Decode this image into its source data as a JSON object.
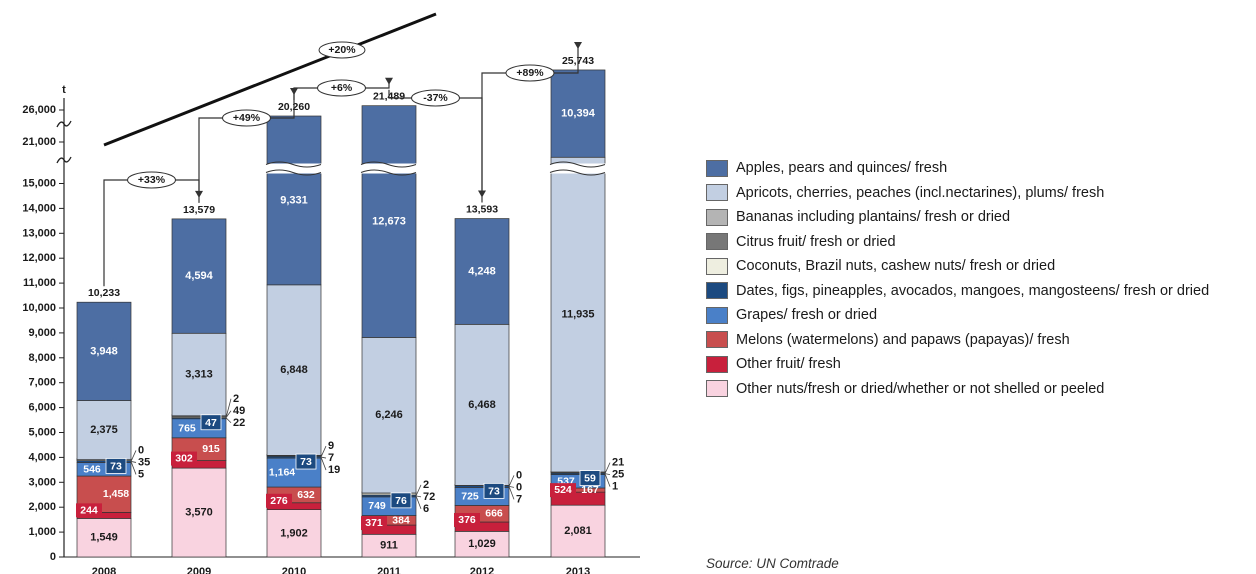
{
  "chart_data": {
    "type": "bar",
    "stacked": true,
    "y_unit": "t",
    "categories": [
      "2008",
      "2009",
      "2010",
      "2011",
      "2012",
      "2013"
    ],
    "y_ticks": [
      0,
      1000,
      2000,
      3000,
      4000,
      5000,
      6000,
      7000,
      8000,
      9000,
      10000,
      11000,
      12000,
      13000,
      14000,
      15000,
      21000,
      26000
    ],
    "y_tick_labels": [
      "0",
      "1,000",
      "2,000",
      "3,000",
      "4,000",
      "5,000",
      "6,000",
      "7,000",
      "8,000",
      "9,000",
      "10,000",
      "11,000",
      "12,000",
      "13,000",
      "14,000",
      "15,000",
      "21,000",
      "26,000"
    ],
    "axis_break": true,
    "series": [
      {
        "key": "other_nuts",
        "name": "Other nuts/fresh or dried/whether or not shelled or peeled",
        "color": "#f9d3e0",
        "values": [
          1549,
          3570,
          1902,
          911,
          1029,
          2081
        ],
        "labels": [
          "1,549",
          "3,570",
          "1,902",
          "911",
          "1,029",
          "2,081"
        ]
      },
      {
        "key": "other_fruit",
        "name": "Other fruit/ fresh",
        "color": "#c8203c",
        "values": [
          244,
          302,
          276,
          371,
          376,
          524
        ],
        "labels": [
          "244",
          "302",
          "276",
          "371",
          "376",
          "524"
        ]
      },
      {
        "key": "melons",
        "name": "Melons (watermelons) and papaws (papayas)/ fresh",
        "color": "#c84e4e",
        "values": [
          1458,
          915,
          632,
          384,
          666,
          167
        ],
        "labels": [
          "1,458",
          "915",
          "632",
          "384",
          "666",
          "167"
        ]
      },
      {
        "key": "grapes",
        "name": "Grapes/ fresh or dried",
        "color": "#4a80c8",
        "values": [
          546,
          765,
          1164,
          749,
          725,
          537
        ],
        "labels": [
          "546",
          "765",
          "1,164",
          "749",
          "725",
          "537"
        ]
      },
      {
        "key": "dates",
        "name": "Dates, figs, pineapples, avocados, mangoes, mangosteens/ fresh or dried",
        "color": "#1c4a80",
        "values": [
          73,
          47,
          73,
          76,
          73,
          59
        ],
        "labels": [
          "73",
          "47",
          "73",
          "76",
          "73",
          "59"
        ]
      },
      {
        "key": "coconuts",
        "name": "Coconuts, Brazil nuts, cashew nuts/ fresh or dried",
        "color": "#eeeee0",
        "values": [
          35,
          49,
          7,
          72,
          0,
          25
        ],
        "labels": [
          "35",
          "49",
          "7",
          "72",
          "0",
          "25"
        ]
      },
      {
        "key": "citrus",
        "name": "Citrus fruit/ fresh or dried",
        "color": "#777777",
        "values": [
          5,
          22,
          19,
          6,
          7,
          1
        ],
        "labels": [
          "5",
          "22",
          "19",
          "6",
          "7",
          "1"
        ]
      },
      {
        "key": "bananas",
        "name": "Bananas including plantains/ fresh or dried",
        "color": "#b4b4b4",
        "values": [
          0,
          2,
          9,
          2,
          0,
          21
        ],
        "labels": [
          "0",
          "2",
          "9",
          "2",
          "0",
          "21"
        ]
      },
      {
        "key": "apricots",
        "name": "Apricots, cherries, peaches (incl.nectarines), plums/ fresh",
        "color": "#c2cfe2",
        "values": [
          2375,
          3313,
          6848,
          6246,
          6468,
          11935
        ],
        "labels": [
          "2,375",
          "3,313",
          "6,848",
          "6,246",
          "6,468",
          "11,935"
        ]
      },
      {
        "key": "apples",
        "name": "Apples, pears and quinces/ fresh",
        "color": "#4d6ea3",
        "values": [
          3948,
          4594,
          9331,
          12673,
          4248,
          10394
        ],
        "labels": [
          "3,948",
          "4,594",
          "9,331",
          "12,673",
          "4,248",
          "10,394"
        ]
      }
    ],
    "totals": [
      10233,
      13579,
      20260,
      21489,
      13593,
      25743
    ],
    "total_labels": [
      "10,233",
      "13,579",
      "20,260",
      "21,489",
      "13,593",
      "25,743"
    ],
    "changes": [
      "+33%",
      "+49%",
      "+6%",
      "-37%",
      "+89%"
    ],
    "overall_change": "+20%",
    "legend_order": [
      "apples",
      "apricots",
      "bananas",
      "citrus",
      "coconuts",
      "dates",
      "grapes",
      "melons",
      "other_fruit",
      "other_nuts"
    ],
    "legend_placement": "right"
  },
  "source": "Source: UN Comtrade"
}
